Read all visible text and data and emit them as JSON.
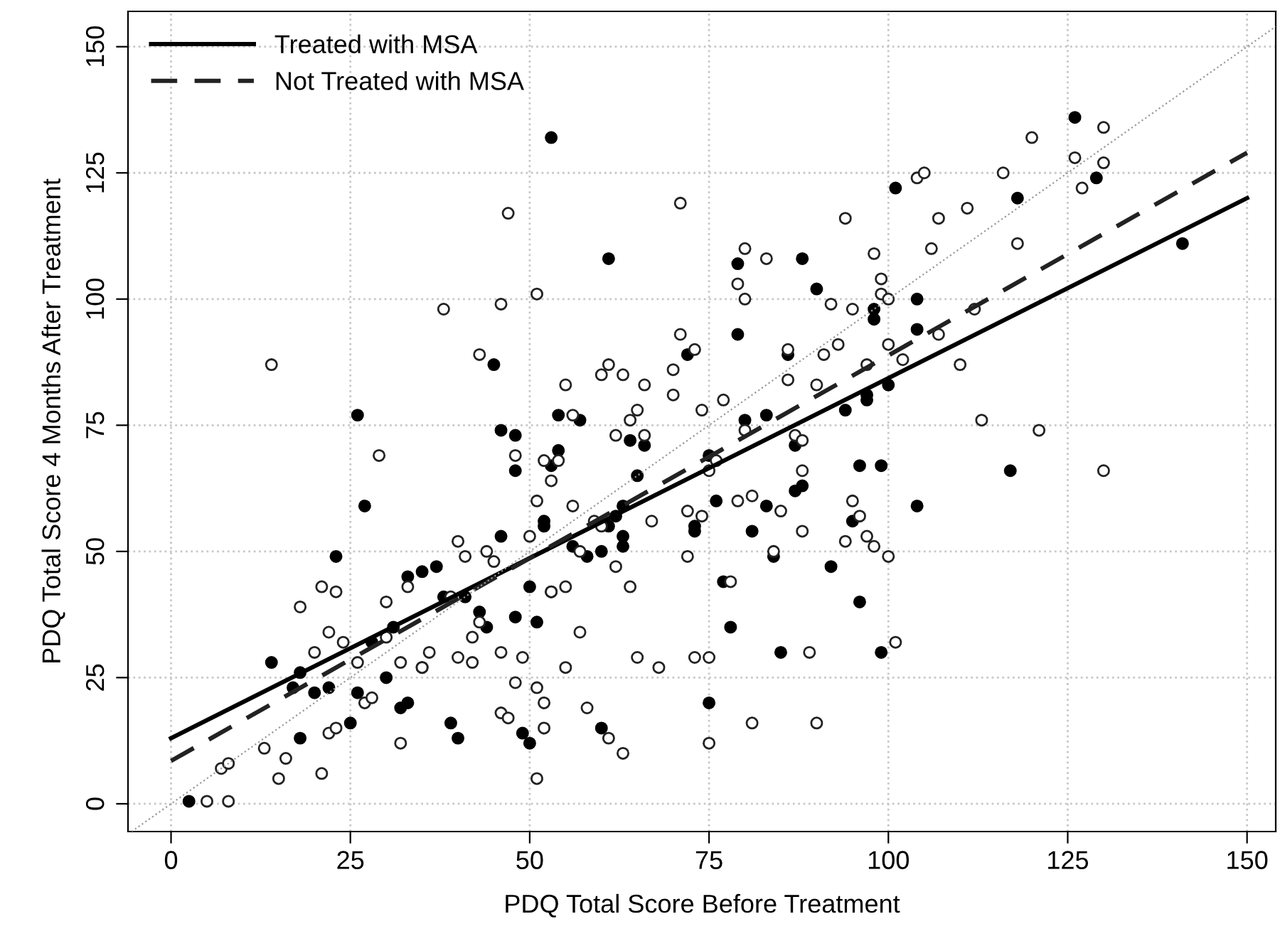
{
  "chart_data": {
    "type": "scatter",
    "xlabel": "PDQ Total Score Before Treatment",
    "ylabel": "PDQ Total Score 4 Months After Treatment",
    "xlim": [
      -6,
      154
    ],
    "ylim": [
      -5.5,
      157
    ],
    "xticks": [
      0,
      25,
      50,
      75,
      100,
      125,
      150
    ],
    "yticks": [
      0,
      25,
      50,
      75,
      100,
      125,
      150
    ],
    "grid": true,
    "legend": "top left",
    "series": [
      {
        "name": "Treated with MSA",
        "marker": "circle",
        "color": "#000000",
        "line_style": "solid",
        "x": [
          2.5,
          14,
          17,
          18,
          18,
          20,
          22,
          23,
          25,
          26,
          26,
          27,
          28,
          30,
          31,
          32,
          33,
          33,
          35,
          35,
          37,
          38,
          39,
          40,
          41,
          43,
          44,
          45,
          46,
          46,
          48,
          48,
          48,
          49,
          50,
          50,
          51,
          52,
          52,
          53,
          53,
          53,
          54,
          54,
          56,
          57,
          58,
          60,
          60,
          61,
          61,
          62,
          63,
          63,
          63,
          64,
          65,
          66,
          72,
          73,
          73,
          75,
          75,
          76,
          77,
          78,
          79,
          79,
          80,
          81,
          83,
          83,
          84,
          85,
          86,
          87,
          87,
          88,
          88,
          90,
          92,
          94,
          95,
          96,
          96,
          97,
          97,
          98,
          98,
          99,
          99,
          100,
          101,
          104,
          104,
          104,
          117,
          118,
          126,
          129,
          141
        ],
        "values": [
          0.5,
          28,
          23,
          26,
          13,
          22,
          23,
          49,
          16,
          22,
          77,
          59,
          32,
          25,
          35,
          19,
          20,
          45,
          27,
          46,
          47,
          41,
          16,
          13,
          41,
          38,
          35,
          87,
          74,
          53,
          37,
          66,
          73,
          14,
          12,
          43,
          36,
          55,
          56,
          67,
          42,
          132,
          70,
          77,
          51,
          76,
          49,
          50,
          15,
          108,
          55,
          57,
          59,
          53,
          51,
          72,
          65,
          71,
          89,
          55,
          54,
          69,
          20,
          60,
          44,
          35,
          93,
          107,
          76,
          54,
          59,
          77,
          49,
          30,
          89,
          71,
          62,
          108,
          63,
          102,
          47,
          78,
          56,
          67,
          40,
          81,
          80,
          98,
          96,
          67,
          30,
          83,
          122,
          59,
          100,
          94,
          66,
          120,
          136,
          124,
          111
        ]
      },
      {
        "name": "Not Treated with MSA",
        "marker": "circle",
        "color": "#222222",
        "line_style": "dashed",
        "x": [
          5,
          8,
          7,
          8,
          13,
          14,
          15,
          16,
          18,
          20,
          21,
          21,
          22,
          22,
          23,
          23,
          24,
          26,
          27,
          28,
          29,
          30,
          30,
          32,
          32,
          33,
          35,
          36,
          38,
          39,
          40,
          40,
          41,
          42,
          42,
          43,
          43,
          44,
          45,
          46,
          46,
          46,
          47,
          47,
          48,
          48,
          49,
          50,
          51,
          51,
          51,
          51,
          52,
          52,
          52,
          53,
          53,
          54,
          55,
          55,
          55,
          56,
          56,
          57,
          57,
          58,
          59,
          60,
          60,
          61,
          61,
          62,
          62,
          63,
          63,
          64,
          64,
          65,
          65,
          66,
          66,
          67,
          68,
          70,
          70,
          71,
          71,
          72,
          72,
          73,
          73,
          74,
          74,
          75,
          75,
          75,
          76,
          77,
          78,
          79,
          79,
          80,
          80,
          80,
          81,
          81,
          83,
          84,
          85,
          86,
          86,
          87,
          88,
          88,
          88,
          89,
          90,
          90,
          91,
          92,
          93,
          94,
          94,
          95,
          95,
          96,
          97,
          97,
          98,
          98,
          99,
          99,
          100,
          100,
          100,
          101,
          102,
          104,
          105,
          106,
          107,
          110,
          111,
          112,
          113,
          116,
          118,
          120,
          121,
          126,
          127,
          130,
          130,
          130,
          107
        ],
        "values": [
          0.5,
          0.5,
          7,
          8,
          11,
          87,
          5,
          9,
          39,
          30,
          6,
          43,
          34,
          14,
          15,
          42,
          32,
          28,
          20,
          21,
          69,
          33,
          40,
          28,
          12,
          43,
          27,
          30,
          98,
          41,
          52,
          29,
          49,
          33,
          28,
          89,
          36,
          50,
          48,
          99,
          18,
          30,
          117,
          17,
          69,
          24,
          29,
          53,
          101,
          60,
          23,
          5,
          68,
          15,
          20,
          64,
          42,
          68,
          83,
          43,
          27,
          77,
          59,
          34,
          50,
          19,
          56,
          55,
          85,
          87,
          13,
          47,
          73,
          10,
          85,
          43,
          76,
          78,
          29,
          73,
          83,
          56,
          27,
          81,
          86,
          119,
          93,
          49,
          58,
          29,
          90,
          78,
          57,
          12,
          29,
          66,
          68,
          80,
          44,
          103,
          60,
          110,
          100,
          74,
          16,
          61,
          108,
          50,
          58,
          84,
          90,
          73,
          72,
          66,
          54,
          30,
          16,
          83,
          89,
          99,
          91,
          52,
          116,
          98,
          60,
          57,
          53,
          87,
          51,
          109,
          101,
          104,
          49,
          91,
          100,
          32,
          88,
          124,
          125,
          110,
          93,
          87,
          118,
          98,
          76,
          125,
          111,
          132,
          74,
          128,
          122,
          127,
          134,
          66,
          116
        ]
      },
      {
        "type": "line",
        "color": "#000000",
        "line_style": "solid",
        "x": [
          0,
          150
        ],
        "values": [
          13,
          120
        ]
      },
      {
        "type": "line",
        "color": "#222222",
        "line_style": "dashed",
        "x": [
          0,
          150
        ],
        "values": [
          8.5,
          129
        ]
      },
      {
        "type": "line",
        "color": "#999999",
        "line_style": "dotted",
        "x": [
          -5.5,
          154
        ],
        "values": [
          -5.5,
          154
        ]
      }
    ]
  }
}
